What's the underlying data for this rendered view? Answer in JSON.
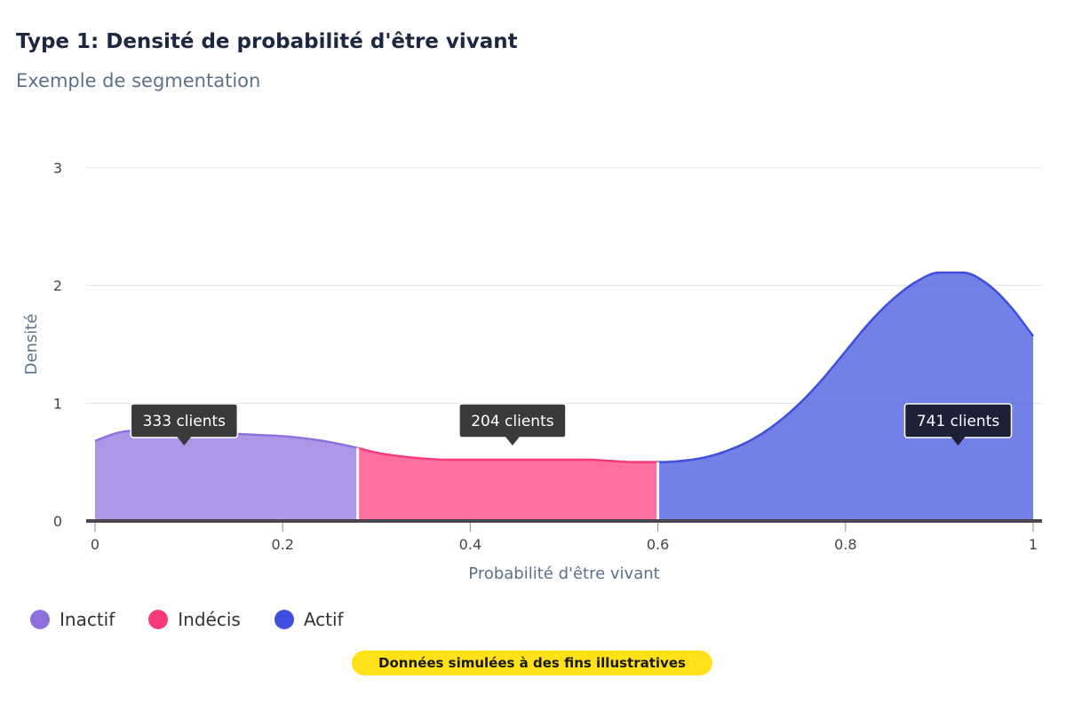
{
  "header": {
    "title": "Type 1: Densité de probabilité d'être vivant",
    "subtitle": "Exemple de segmentation"
  },
  "colors": {
    "inactif": "#8f6fdc",
    "indecis": "#f83a7a",
    "actif": "#3d4fdc",
    "tooltip_dark": "#3a3a3a",
    "tooltip_navy": "#1c2038",
    "note_bg": "#ffe11a"
  },
  "legend": [
    {
      "label": "Inactif",
      "color": "#8f6fdc"
    },
    {
      "label": "Indécis",
      "color": "#f83a7a"
    },
    {
      "label": "Actif",
      "color": "#3d4fdc"
    }
  ],
  "note": "Données simulées à des fins illustratives",
  "chart_data": {
    "type": "area",
    "title": "Type 1: Densité de probabilité d'être vivant",
    "subtitle": "Exemple de segmentation",
    "xlabel": "Probabilité d'être vivant",
    "ylabel": "Densité",
    "xlim": [
      0,
      1
    ],
    "ylim": [
      0,
      3
    ],
    "x_ticks": [
      "0",
      "0.2",
      "0.4",
      "0.6",
      "0.8",
      "1"
    ],
    "y_ticks": [
      "0",
      "1",
      "2",
      "3"
    ],
    "grid": true,
    "legend_position": "bottom-left",
    "x": [
      0,
      0.025,
      0.05,
      0.075,
      0.1,
      0.125,
      0.15,
      0.175,
      0.2,
      0.225,
      0.25,
      0.28,
      0.3,
      0.325,
      0.35,
      0.375,
      0.4,
      0.425,
      0.45,
      0.475,
      0.5,
      0.525,
      0.55,
      0.575,
      0.6,
      0.625,
      0.65,
      0.675,
      0.7,
      0.725,
      0.75,
      0.775,
      0.8,
      0.825,
      0.85,
      0.875,
      0.9,
      0.925,
      0.95,
      0.975,
      1
    ],
    "y": [
      0.68,
      0.75,
      0.77,
      0.77,
      0.76,
      0.75,
      0.74,
      0.73,
      0.72,
      0.7,
      0.67,
      0.62,
      0.58,
      0.55,
      0.53,
      0.52,
      0.52,
      0.52,
      0.52,
      0.52,
      0.52,
      0.52,
      0.51,
      0.5,
      0.5,
      0.51,
      0.54,
      0.6,
      0.69,
      0.82,
      0.99,
      1.2,
      1.44,
      1.68,
      1.88,
      2.03,
      2.11,
      2.11,
      2.02,
      1.83,
      1.57
    ],
    "segments": [
      {
        "name": "Inactif",
        "x_start": 0,
        "x_end": 0.28,
        "color": "#8f6fdc",
        "label": "333 clients",
        "label_x": 0.095,
        "tooltip_color": "#3a3a3a"
      },
      {
        "name": "Indécis",
        "x_start": 0.28,
        "x_end": 0.6,
        "color": "#f83a7a",
        "label": "204 clients",
        "label_x": 0.445,
        "tooltip_color": "#3a3a3a"
      },
      {
        "name": "Actif",
        "x_start": 0.6,
        "x_end": 1,
        "color": "#3d4fdc",
        "label": "741 clients",
        "label_x": 0.92,
        "tooltip_color": "#1c2038"
      }
    ]
  }
}
